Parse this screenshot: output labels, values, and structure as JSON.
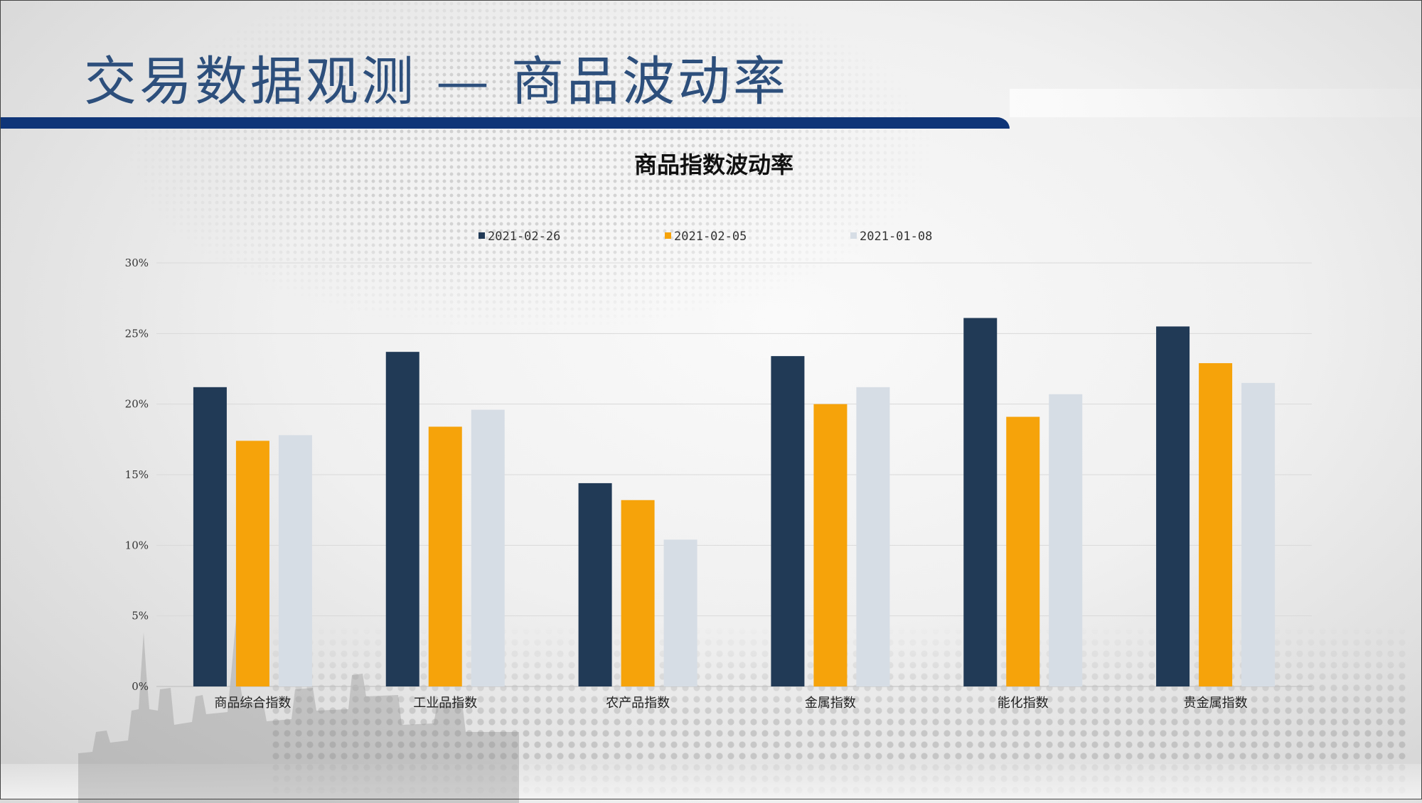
{
  "page": {
    "title": "交易数据观测 — 商品波动率"
  },
  "colors": {
    "header_bar": "#0f3578",
    "title_text": "#2d4f7c"
  },
  "chart_data": {
    "type": "bar",
    "title": "商品指数波动率",
    "categories": [
      "商品综合指数",
      "工业品指数",
      "农产品指数",
      "金属指数",
      "能化指数",
      "贵金属指数"
    ],
    "series": [
      {
        "name": "2021-02-26",
        "color": "#213a56",
        "values": [
          21.2,
          23.7,
          14.4,
          23.4,
          26.1,
          25.5
        ]
      },
      {
        "name": "2021-02-05",
        "color": "#f6a30a",
        "values": [
          17.4,
          18.4,
          13.2,
          20.0,
          19.1,
          22.9
        ]
      },
      {
        "name": "2021-01-08",
        "color": "#d6dde5",
        "values": [
          17.8,
          19.6,
          10.4,
          21.2,
          20.7,
          21.5
        ]
      }
    ],
    "ylim": [
      0,
      30
    ],
    "yticks": [
      0,
      5,
      10,
      15,
      20,
      25,
      30
    ],
    "ytick_format": "%",
    "grid": true,
    "legend_position": "top"
  }
}
